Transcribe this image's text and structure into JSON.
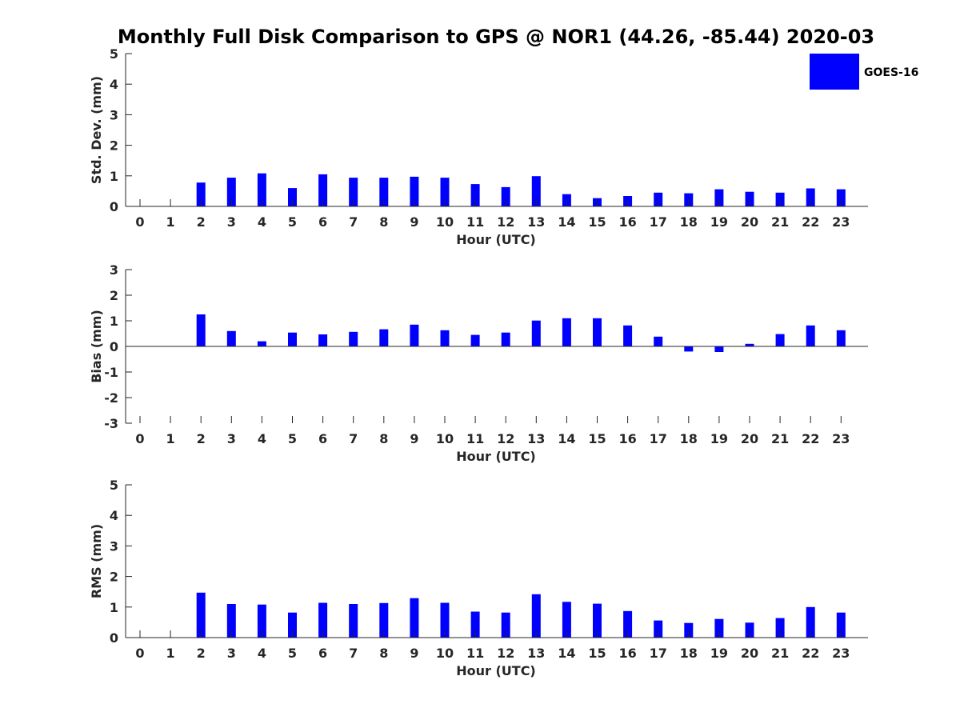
{
  "chart_data": {
    "type": "bar",
    "title": "Monthly Full Disk Comparison to GPS @ NOR1 (44.26, -85.44) 2020-03",
    "legend": {
      "label": "GOES-16",
      "color": "#0000ff",
      "placement": "top-right"
    },
    "categories": [
      "0",
      "1",
      "2",
      "3",
      "4",
      "5",
      "6",
      "7",
      "8",
      "9",
      "10",
      "11",
      "12",
      "13",
      "14",
      "15",
      "16",
      "17",
      "18",
      "19",
      "20",
      "21",
      "22",
      "23"
    ],
    "panels": [
      {
        "id": "std",
        "ylabel": "Std. Dev. (mm)",
        "xlabel": "Hour (UTC)",
        "ylim": [
          0,
          5
        ],
        "yticks": [
          "0",
          "1",
          "2",
          "3",
          "4",
          "5"
        ],
        "series": [
          {
            "name": "GOES-16",
            "values": [
              null,
              null,
              0.78,
              0.94,
              1.08,
              0.6,
              1.05,
              0.94,
              0.94,
              0.97,
              0.94,
              0.73,
              0.63,
              0.99,
              0.4,
              0.27,
              0.34,
              0.45,
              0.43,
              0.56,
              0.48,
              0.45,
              0.59,
              0.56
            ]
          }
        ]
      },
      {
        "id": "bias",
        "ylabel": "Bias (mm)",
        "xlabel": "Hour (UTC)",
        "ylim": [
          -3,
          3
        ],
        "yticks": [
          "-3",
          "-2",
          "-1",
          "0",
          "1",
          "2",
          "3"
        ],
        "series": [
          {
            "name": "GOES-16",
            "values": [
              null,
              null,
              1.25,
              0.6,
              0.2,
              0.54,
              0.47,
              0.57,
              0.67,
              0.85,
              0.63,
              0.45,
              0.54,
              1.01,
              1.1,
              1.1,
              0.82,
              0.38,
              -0.2,
              -0.22,
              0.1,
              0.48,
              0.82,
              0.63
            ]
          }
        ]
      },
      {
        "id": "rms",
        "ylabel": "RMS (mm)",
        "xlabel": "Hour (UTC)",
        "ylim": [
          0,
          5
        ],
        "yticks": [
          "0",
          "1",
          "2",
          "3",
          "4",
          "5"
        ],
        "series": [
          {
            "name": "GOES-16",
            "values": [
              null,
              null,
              1.47,
              1.1,
              1.08,
              0.82,
              1.14,
              1.1,
              1.13,
              1.29,
              1.14,
              0.85,
              0.82,
              1.42,
              1.17,
              1.11,
              0.87,
              0.56,
              0.48,
              0.61,
              0.49,
              0.64,
              1.0,
              0.82
            ]
          }
        ]
      }
    ]
  }
}
